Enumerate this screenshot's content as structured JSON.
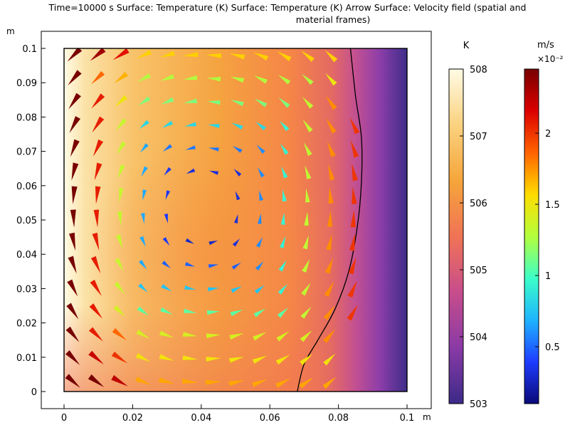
{
  "title": {
    "line1": "Time=10000 s Surface: Temperature (K)  Surface: Temperature (K)  Arrow Surface: Velocity field (spatial and",
    "line2": "material frames)"
  },
  "chart_data": {
    "type": "heatmap",
    "x_unit": "m",
    "y_unit": "m",
    "xlim": [
      0,
      0.1
    ],
    "ylim": [
      0,
      0.1
    ],
    "x_ticks": [
      "0",
      "0.02",
      "0.04",
      "0.06",
      "0.08",
      "0.1"
    ],
    "x_tick_values": [
      0,
      0.02,
      0.04,
      0.06,
      0.08,
      0.1
    ],
    "y_ticks": [
      "0",
      "0.01",
      "0.02",
      "0.03",
      "0.04",
      "0.05",
      "0.06",
      "0.07",
      "0.08",
      "0.09",
      "0.1"
    ],
    "y_tick_values": [
      0,
      0.01,
      0.02,
      0.03,
      0.04,
      0.05,
      0.06,
      0.07,
      0.08,
      0.09,
      0.1
    ],
    "temperature": {
      "unit": "K",
      "range": [
        503,
        508
      ],
      "ticks": [
        "503",
        "504",
        "505",
        "506",
        "507",
        "508"
      ],
      "tick_values": [
        503,
        504,
        505,
        506,
        507,
        508
      ],
      "colormap": [
        "#3b2a88",
        "#8a3aa6",
        "#c74d8c",
        "#f07355",
        "#f5a53a",
        "#fad27f",
        "#fffbe6"
      ]
    },
    "velocity": {
      "unit": "m/s",
      "exponent": "×10⁻²",
      "range": [
        0.1,
        2.45
      ],
      "ticks": [
        "0.5",
        "1",
        "1.5",
        "2"
      ],
      "tick_values": [
        0.5,
        1,
        1.5,
        2
      ],
      "colormap": [
        "#0a0a78",
        "#1e3cff",
        "#1eb4ff",
        "#3cffc8",
        "#b4ff3c",
        "#ffdc00",
        "#ff6400",
        "#dc0000",
        "#780000"
      ]
    },
    "interface_contour": [
      [
        0.068,
        0
      ],
      [
        0.07,
        0.008
      ],
      [
        0.074,
        0.015
      ],
      [
        0.079,
        0.024
      ],
      [
        0.083,
        0.035
      ],
      [
        0.0855,
        0.048
      ],
      [
        0.0867,
        0.061
      ],
      [
        0.0867,
        0.074
      ],
      [
        0.085,
        0.086
      ],
      [
        0.0835,
        0.1
      ]
    ],
    "arrow_grid": {
      "x": [
        0.0028,
        0.0096,
        0.0164,
        0.0232,
        0.03,
        0.0368,
        0.0436,
        0.0504,
        0.0572,
        0.064,
        0.0708,
        0.0776,
        0.0844
      ],
      "y": [
        0.0028,
        0.0096,
        0.0164,
        0.0232,
        0.03,
        0.0368,
        0.0436,
        0.0504,
        0.0572,
        0.064,
        0.0708,
        0.0776,
        0.0844,
        0.0912,
        0.098
      ],
      "center": [
        0.041,
        0.053
      ],
      "vortex_scale": [
        0.04,
        0.047
      ],
      "peak_speed": 2.45
    }
  }
}
